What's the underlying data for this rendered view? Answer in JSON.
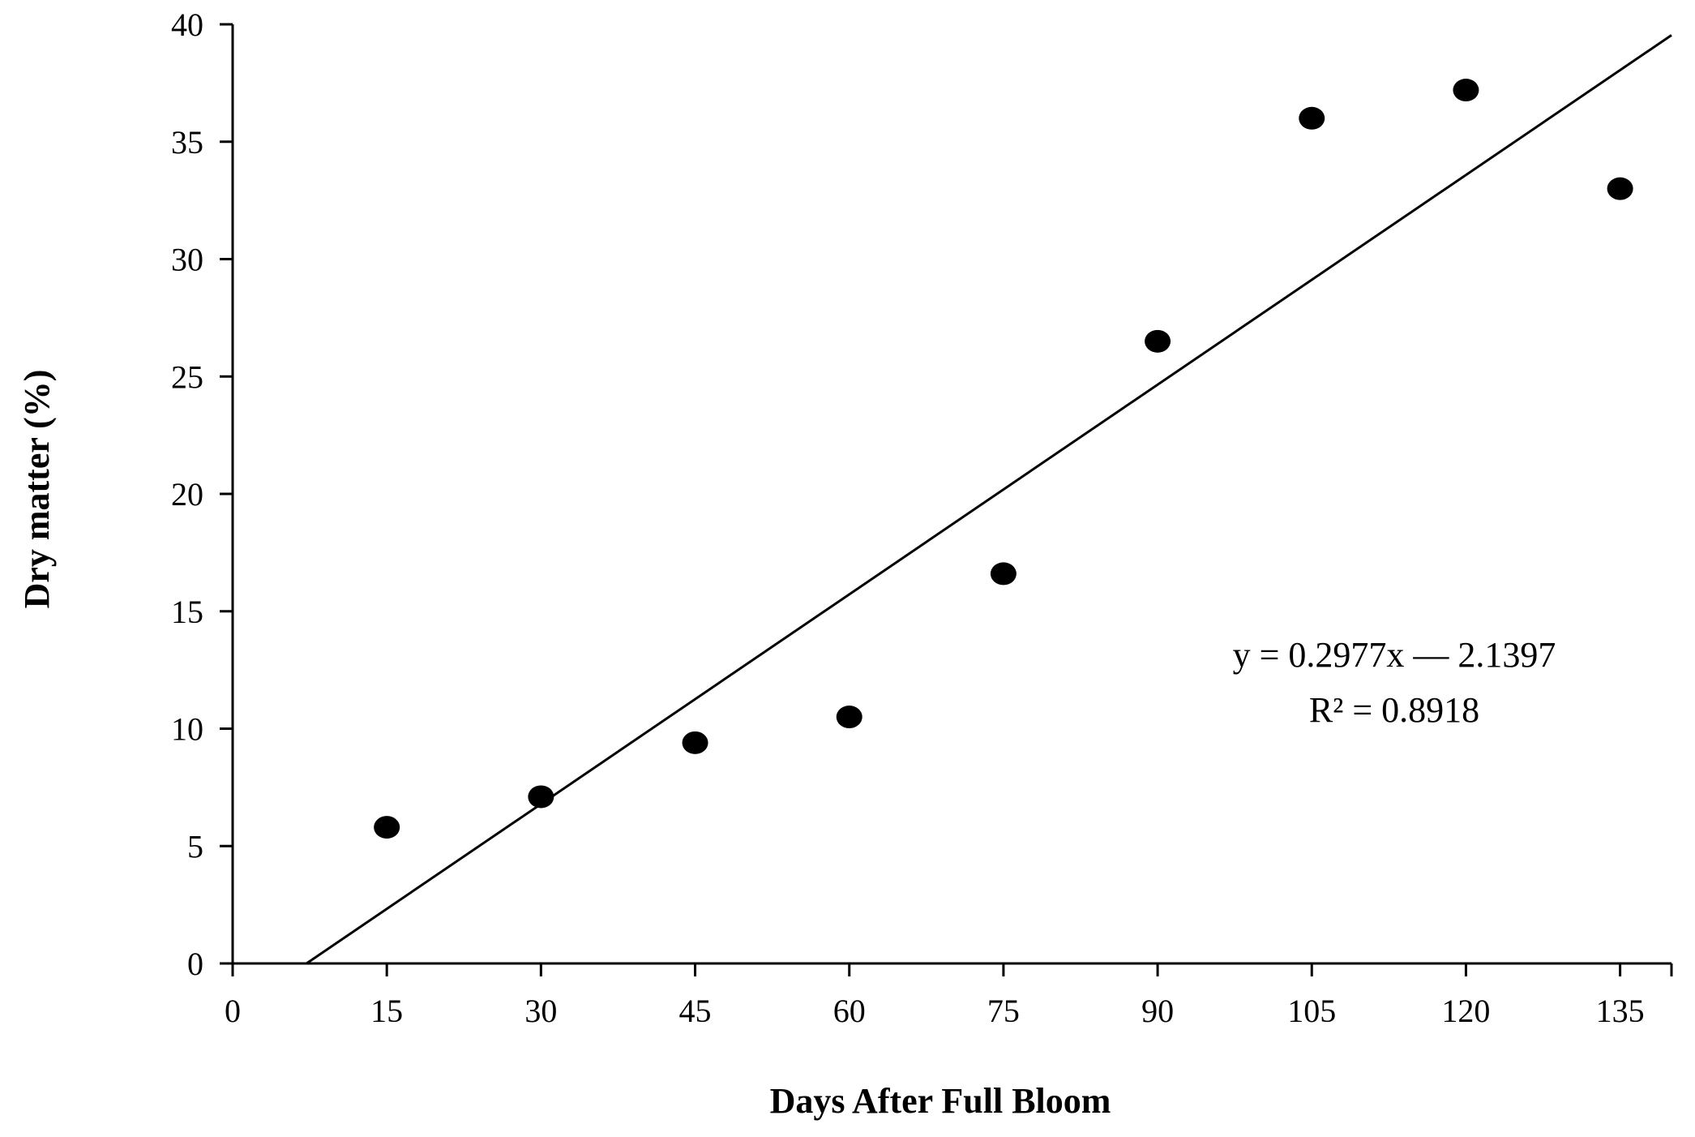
{
  "chart_data": {
    "type": "scatter",
    "title": "",
    "xlabel": "Days After Full Bloom",
    "ylabel": "Dry matter (%)",
    "xlim": [
      0,
      140
    ],
    "ylim": [
      0,
      40
    ],
    "x_ticks": [
      0,
      15,
      30,
      45,
      60,
      75,
      90,
      105,
      120,
      135
    ],
    "y_ticks": [
      0,
      5,
      10,
      15,
      20,
      25,
      30,
      35,
      40
    ],
    "x_tick_labels": [
      "0",
      "15",
      "30",
      "45",
      "60",
      "75",
      "90",
      "105",
      "120",
      "135"
    ],
    "y_tick_labels": [
      "0",
      "5",
      "10",
      "15",
      "20",
      "25",
      "30",
      "35",
      "40"
    ],
    "grid": false,
    "series": [
      {
        "x": [
          15,
          30,
          45,
          60,
          75,
          90,
          105,
          120,
          135
        ],
        "y": [
          5.8,
          7.1,
          9.4,
          10.5,
          16.6,
          26.5,
          36.0,
          37.2,
          33.0
        ]
      }
    ],
    "trendline": {
      "slope": 0.2977,
      "intercept": -2.1397
    },
    "annotations": {
      "equation": "y = 0.2977x — 2.1397",
      "r_squared": "R² = 0.8918"
    },
    "colors": {
      "axis": "#000000",
      "marker": "#000000",
      "line": "#000000"
    }
  }
}
